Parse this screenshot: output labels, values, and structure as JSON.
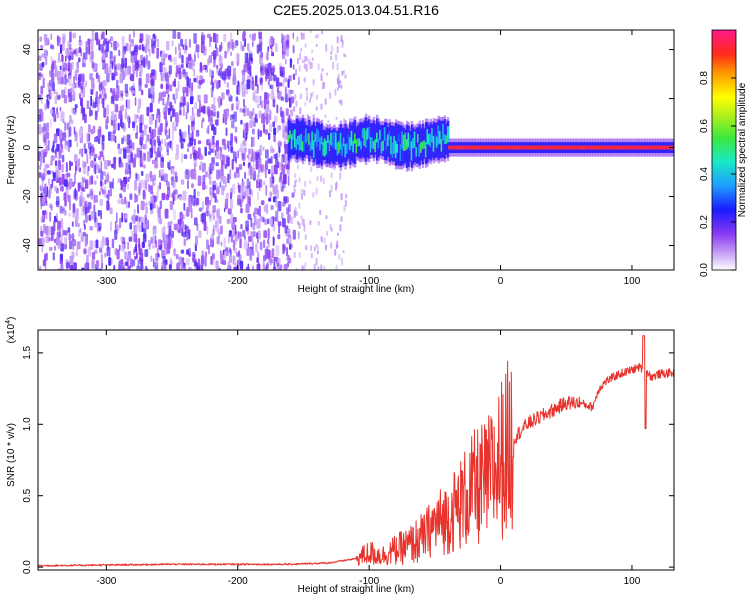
{
  "title": "C2E5.2025.013.04.51.R16",
  "colors": {
    "snr_line": "#e8322c",
    "spectrogram_low": "#7a1fe6",
    "spectrogram_high": "#ff2050",
    "axis": "#000000"
  },
  "chart_data": [
    {
      "type": "heatmap",
      "xlabel": "Height of straight line (km)",
      "ylabel": "Frequency (Hz)",
      "xlim": [
        -352,
        132
      ],
      "ylim": [
        -50,
        48
      ],
      "xticks": [
        "-300",
        "-200",
        "-100",
        "0",
        "100"
      ],
      "xtick_values": [
        -300,
        -200,
        -100,
        0,
        100
      ],
      "yticks": [
        "-40",
        "-20",
        "0",
        "20",
        "40"
      ],
      "ytick_values": [
        -40,
        -20,
        0,
        20,
        40
      ],
      "colorbar": {
        "label": "Normalized spectral amplitude",
        "range": [
          0,
          1
        ],
        "ticks": [
          "0.0",
          "0.2",
          "0.4",
          "0.6",
          "0.8"
        ],
        "tick_values": [
          0.0,
          0.2,
          0.4,
          0.6,
          0.8
        ],
        "colormap": "rainbow"
      },
      "regions": [
        {
          "x_from": -352,
          "x_to": -160,
          "description": "noise",
          "amplitude": 0.15
        },
        {
          "x_from": -160,
          "x_to": -40,
          "carrier_hz": 2,
          "bandwidth_hz": 12,
          "amplitude": 0.4
        },
        {
          "x_from": -40,
          "x_to": 132,
          "carrier_hz": 0,
          "bandwidth_hz": 3,
          "amplitude": 0.95
        }
      ]
    },
    {
      "type": "line",
      "xlabel": "Height of straight line (km)",
      "ylabel": "SNR (10 * v/v)",
      "yscale_label": "(x10^4)",
      "xlim": [
        -352,
        132
      ],
      "ylim": [
        -0.02,
        1.66
      ],
      "xticks": [
        "-300",
        "-200",
        "-100",
        "0",
        "100"
      ],
      "xtick_values": [
        -300,
        -200,
        -100,
        0,
        100
      ],
      "yticks": [
        "0.0",
        "0.5",
        "1.0",
        "1.5"
      ],
      "ytick_values": [
        0.0,
        0.5,
        1.0,
        1.5
      ],
      "series": [
        {
          "color": "#e8322c",
          "x": [
            -350,
            -300,
            -250,
            -200,
            -160,
            -130,
            -110,
            -100,
            -90,
            -80,
            -70,
            -60,
            -50,
            -40,
            -30,
            -20,
            -10,
            0,
            10,
            20,
            30,
            40,
            50,
            60,
            70,
            75,
            80,
            90,
            100,
            105,
            110,
            115,
            120,
            130
          ],
          "y": [
            0.01,
            0.015,
            0.02,
            0.02,
            0.02,
            0.03,
            0.06,
            0.1,
            0.08,
            0.12,
            0.15,
            0.2,
            0.3,
            0.35,
            0.45,
            0.55,
            0.6,
            0.75,
            0.9,
            1.0,
            1.05,
            1.1,
            1.15,
            1.15,
            1.12,
            1.25,
            1.3,
            1.35,
            1.38,
            1.4,
            1.38,
            1.33,
            1.35,
            1.36
          ]
        }
      ]
    }
  ]
}
